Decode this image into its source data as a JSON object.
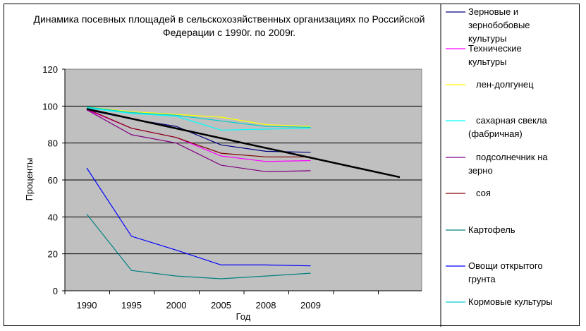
{
  "chart_data": {
    "type": "line",
    "title_lines": [
      "Динамика посевных площадей в сельскохозяйственных организациях по Российской",
      "Федерации с 1990г. по 2009г."
    ],
    "xlabel": "Год",
    "ylabel": "Проценты",
    "categories": [
      "1990",
      "1995",
      "2000",
      "2005",
      "2008",
      "2009"
    ],
    "ylim": [
      0,
      120
    ],
    "yticks": [
      0,
      20,
      40,
      60,
      80,
      100,
      120
    ],
    "plot_background": "#c0c0c0",
    "grid": true,
    "legend_position": "right",
    "series": [
      {
        "name": [
          "Зерновые и",
          "зернобобовые",
          "культуры"
        ],
        "color": "#000080",
        "values": [
          98,
          93,
          89,
          79,
          75.5,
          75
        ]
      },
      {
        "name": [
          "Технические",
          "культуры"
        ],
        "color": "#ff00ff",
        "values": [
          98,
          88,
          83,
          73,
          70,
          70.5
        ]
      },
      {
        "name": [
          "лен-долгунец"
        ],
        "color": "#ffff00",
        "values": [
          99.5,
          97,
          95.5,
          94,
          90,
          89
        ]
      },
      {
        "name": [
          "сахарная свекла",
          "(фабричная)"
        ],
        "color": "#00ffff",
        "values": [
          99,
          96,
          94.5,
          87,
          87.5,
          88
        ]
      },
      {
        "name": [
          "подсолнечник на",
          "зерно"
        ],
        "color": "#800080",
        "values": [
          98,
          84.5,
          80,
          68,
          64.5,
          65
        ]
      },
      {
        "name": [
          "соя"
        ],
        "color": "#800000",
        "values": [
          98.5,
          88,
          83,
          74.5,
          72.5,
          72.5
        ]
      },
      {
        "name": [
          "Картофель"
        ],
        "color": "#008080",
        "values": [
          41.5,
          11,
          8,
          6.5,
          8,
          9.5
        ]
      },
      {
        "name": [
          "Овощи открытого",
          "грунта"
        ],
        "color": "#0000ff",
        "values": [
          66.5,
          29.5,
          22,
          14,
          14,
          13.5
        ]
      },
      {
        "name": [
          "Кормовые культуры"
        ],
        "color": "#00cccc",
        "values": [
          99.5,
          96.5,
          95,
          92,
          89,
          88.5
        ]
      }
    ],
    "trendline": {
      "color": "#000000",
      "start": 98.5,
      "end": 61.5
    }
  }
}
